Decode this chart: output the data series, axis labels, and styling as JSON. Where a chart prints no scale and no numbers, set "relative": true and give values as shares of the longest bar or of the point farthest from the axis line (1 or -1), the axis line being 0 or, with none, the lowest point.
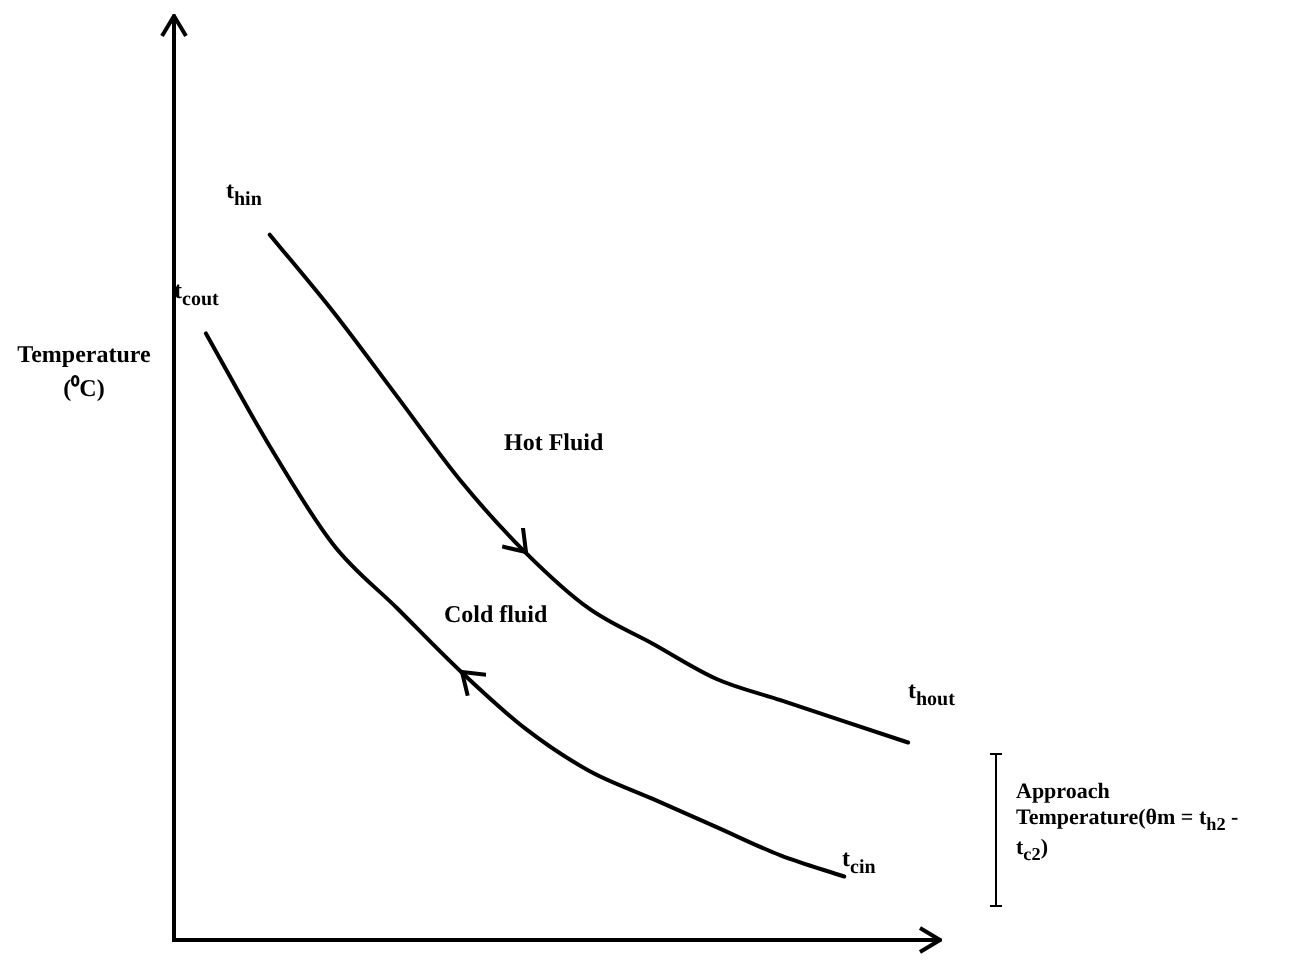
{
  "chart_data": {
    "type": "line",
    "relative": true,
    "ylabel": "Temperature (⁰C)",
    "legend": false,
    "marker": "none",
    "line_style": "solid",
    "categories": [
      null,
      null,
      null,
      null,
      null,
      null,
      null,
      null,
      null,
      null,
      null,
      null
    ],
    "series": [
      {
        "color": "#000000",
        "values": [
          null,
          1,
          0.89,
          0.77,
          0.65,
          0.55,
          0.47,
          0.42,
          0.37,
          0.34,
          0.31,
          0.28
        ]
      },
      {
        "color": "#000000",
        "values": [
          0.86,
          0.7,
          0.56,
          0.47,
          0.38,
          0.3,
          0.24,
          0.2,
          0.16,
          0.12,
          0.09,
          null
        ]
      }
    ],
    "annotations": [
      "t$_{hin}$",
      "t$_{cout}$",
      "Hot Fluid",
      "Cold fluid",
      "t$_{hout}$",
      "t$_{cin}$",
      "Approach Temperature(θm = t$_{h2}$ - t$_{c2}$)"
    ]
  }
}
